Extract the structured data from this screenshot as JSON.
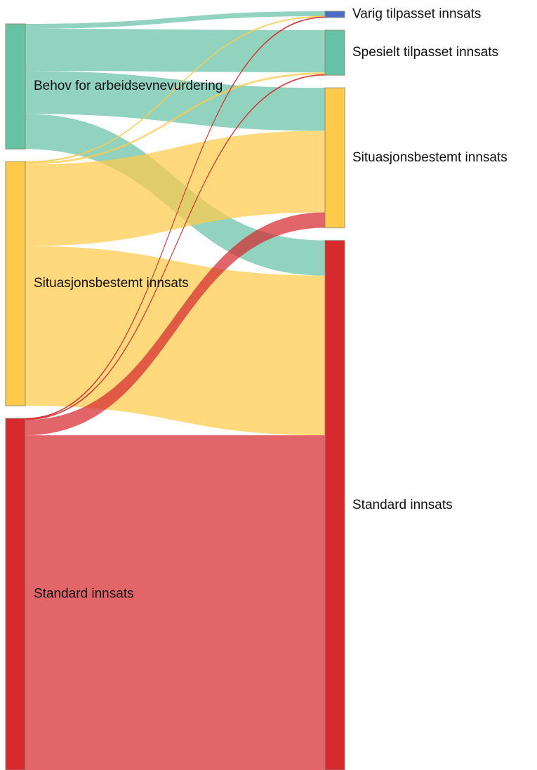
{
  "chart_data": {
    "type": "sankey",
    "nodes": [
      {
        "name": "Behov for arbeidsevnevurdering",
        "color": "#66c2a5",
        "column": 0
      },
      {
        "name": "Situasjonsbestemt innsats",
        "color": "#ffca4a",
        "column": 0
      },
      {
        "name": "Standard innsats",
        "color": "#d62a2f",
        "column": 0
      },
      {
        "name": "Varig tilpasset innsats",
        "color": "#4a6fc4",
        "column": 1
      },
      {
        "name": "Spesielt tilpasset innsats",
        "color": "#66c2a5",
        "column": 1
      },
      {
        "name": "Situasjonsbestemt innsats",
        "color": "#ffca4a",
        "column": 1
      },
      {
        "name": "Standard innsats",
        "color": "#d62a2f",
        "column": 1
      }
    ],
    "links": [
      {
        "source": 0,
        "target": 3,
        "value": 7
      },
      {
        "source": 0,
        "target": 4,
        "value": 60
      },
      {
        "source": 0,
        "target": 5,
        "value": 61
      },
      {
        "source": 0,
        "target": 6,
        "value": 50
      },
      {
        "source": 1,
        "target": 3,
        "value": 1
      },
      {
        "source": 1,
        "target": 4,
        "value": 3
      },
      {
        "source": 1,
        "target": 5,
        "value": 116
      },
      {
        "source": 1,
        "target": 6,
        "value": 227
      },
      {
        "source": 2,
        "target": 3,
        "value": 1
      },
      {
        "source": 2,
        "target": 4,
        "value": 1
      },
      {
        "source": 2,
        "target": 5,
        "value": 22
      },
      {
        "source": 2,
        "target": 6,
        "value": 476
      }
    ]
  }
}
